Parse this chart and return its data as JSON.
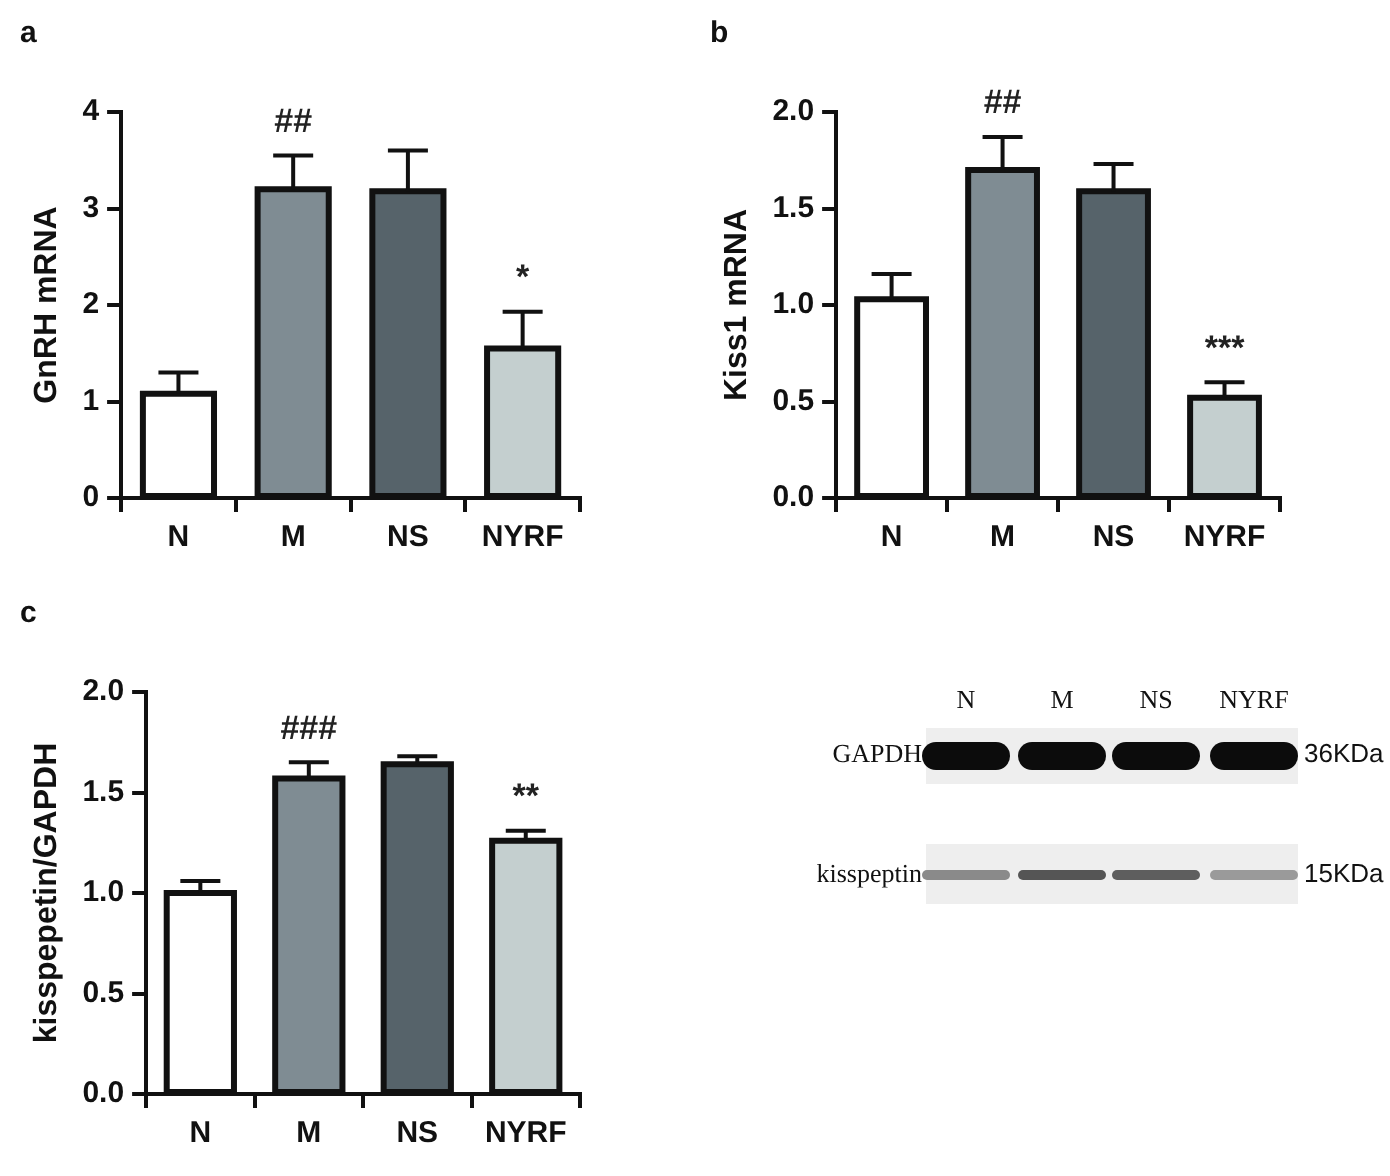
{
  "chart_data": [
    {
      "type": "bar",
      "title": "a",
      "ylabel": "GnRH mRNA",
      "categories": [
        "N",
        "M",
        "NS",
        "NYRF"
      ],
      "colors": [
        "#ffffff",
        "#7f8c93",
        "#56636a",
        "#c4cfcf"
      ],
      "values": [
        1.08,
        3.2,
        3.18,
        1.55
      ],
      "errors": [
        [
          1.08,
          1.3
        ],
        [
          3.2,
          3.55
        ],
        [
          3.18,
          3.6
        ],
        [
          1.55,
          1.93
        ]
      ],
      "ylim": [
        0,
        4
      ],
      "yticks": [
        0,
        1,
        2,
        3,
        4
      ],
      "annotations": [
        {
          "text": "##",
          "x": "M",
          "y": 3.55
        },
        {
          "text": "*",
          "x": "NYRF",
          "y": 1.93
        }
      ]
    },
    {
      "type": "bar",
      "title": "b",
      "ylabel": "Kiss1 mRNA",
      "categories": [
        "N",
        "M",
        "NS",
        "NYRF"
      ],
      "colors": [
        "#ffffff",
        "#7f8c93",
        "#56636a",
        "#c4cfcf"
      ],
      "values": [
        1.03,
        1.7,
        1.59,
        0.52
      ],
      "errors": [
        [
          1.03,
          1.16
        ],
        [
          1.7,
          1.87
        ],
        [
          1.59,
          1.73
        ],
        [
          0.52,
          0.6
        ]
      ],
      "ylim": [
        0,
        2
      ],
      "yticks": [
        {
          "value": 0,
          "label": "0.0"
        },
        {
          "value": 0.5,
          "label": "0.5"
        },
        {
          "value": 1,
          "label": "1.0"
        },
        {
          "value": 1.5,
          "label": "1.5"
        },
        {
          "value": 2,
          "label": "2.0"
        }
      ],
      "annotations": [
        {
          "text": "##",
          "x": "M",
          "y": 1.87
        },
        {
          "text": "***",
          "x": "NYRF",
          "y": 0.6
        }
      ]
    },
    {
      "type": "bar",
      "title": "c",
      "ylabel": "kisspepetin/GAPDH",
      "categories": [
        "N",
        "M",
        "NS",
        "NYRF"
      ],
      "colors": [
        "#ffffff",
        "#7f8c93",
        "#56636a",
        "#c4cfcf"
      ],
      "values": [
        1.0,
        1.57,
        1.64,
        1.26
      ],
      "errors": [
        [
          1.0,
          1.06
        ],
        [
          1.57,
          1.65
        ],
        [
          1.64,
          1.68
        ],
        [
          1.26,
          1.31
        ]
      ],
      "ylim": [
        0,
        2
      ],
      "yticks": [
        {
          "value": 0,
          "label": "0.0"
        },
        {
          "value": 0.5,
          "label": "0.5"
        },
        {
          "value": 1,
          "label": "1.0"
        },
        {
          "value": 1.5,
          "label": "1.5"
        },
        {
          "value": 2,
          "label": "2.0"
        }
      ],
      "annotations": [
        {
          "text": "###",
          "x": "M",
          "y": 1.65
        },
        {
          "text": "**",
          "x": "NYRF",
          "y": 1.31
        }
      ]
    },
    {
      "type": "other",
      "categories": [
        "N",
        "M",
        "NS",
        "NYRF"
      ],
      "annotations": [
        "GAPDH",
        "36KDa",
        "kisspeptin",
        "15KDa"
      ]
    }
  ]
}
